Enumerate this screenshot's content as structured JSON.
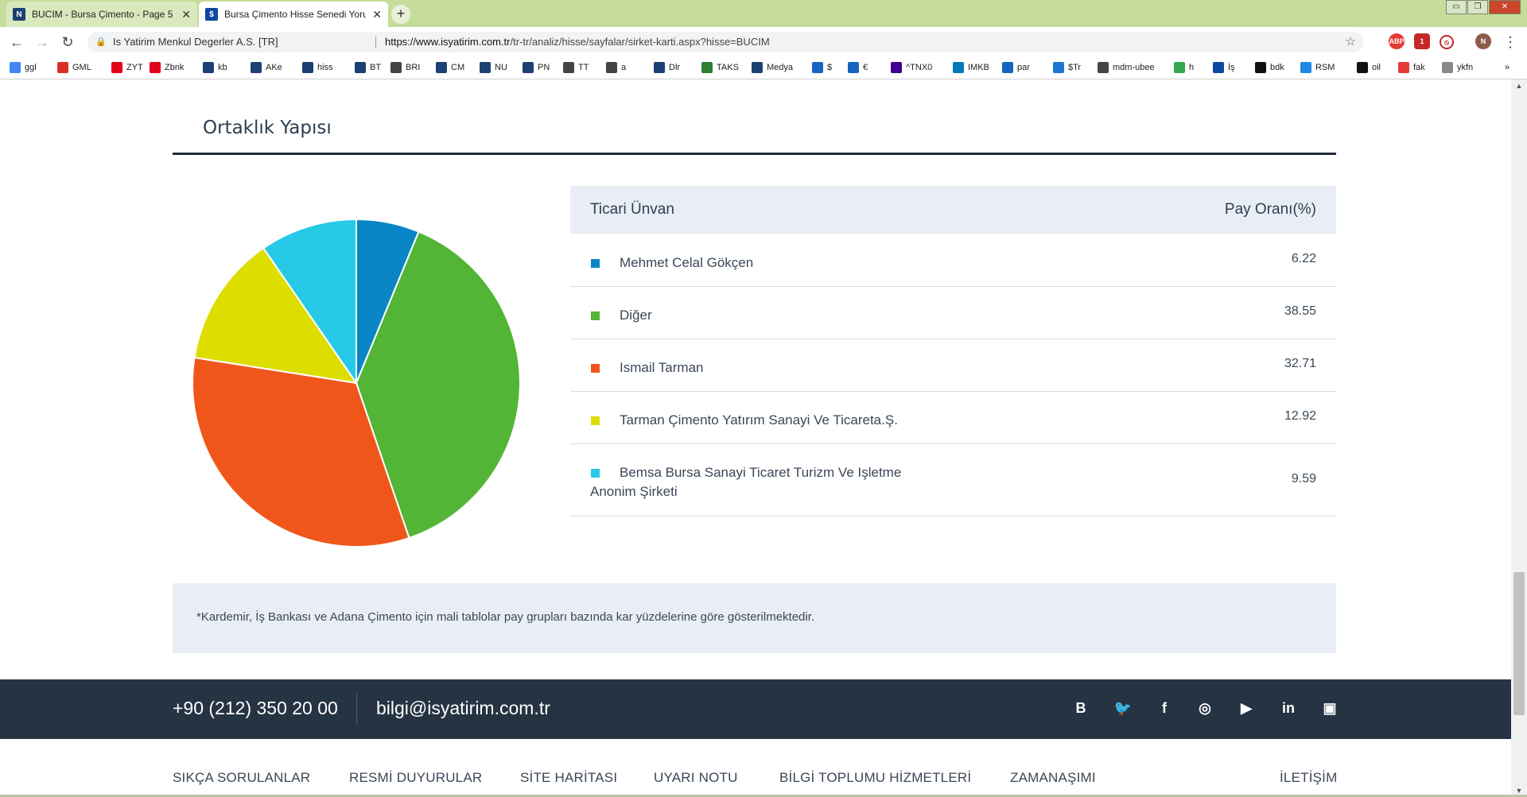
{
  "browser": {
    "tabs": [
      {
        "title": "BUCIM - Bursa Çimento - Page 5",
        "favicon": "isyatirim-icon",
        "active": false
      },
      {
        "title": "Bursa Çimento Hisse Senedi Yorumları",
        "favicon": "dollar-icon",
        "active": true
      }
    ],
    "new_tab": "+",
    "window_controls": [
      "▭",
      "❐",
      "✕"
    ],
    "site_identity": "Is Yatirim Menkul Degerler A.S. [TR]",
    "url_host": "https://www.isyatirim.com.tr",
    "url_path": "/tr-tr/analiz/hisse/sayfalar/sirket-karti.aspx?hisse=BUCIM",
    "profile_initial": "N",
    "bookmarks": [
      {
        "label": "ggl",
        "icon": "google-icon",
        "color": "#4285f4"
      },
      {
        "label": "GML",
        "icon": "gmail-icon",
        "color": "#d93025"
      },
      {
        "label": "ZYT",
        "icon": "ziraat-icon",
        "color": "#e2001a"
      },
      {
        "label": "Zbnk",
        "icon": "ziraat-icon",
        "color": "#e2001a"
      },
      {
        "label": "kb",
        "icon": "isyatirim-icon",
        "color": "#1c3f74"
      },
      {
        "label": "AKe",
        "icon": "isyatirim-icon",
        "color": "#1c3f74"
      },
      {
        "label": "hiss",
        "icon": "isyatirim-icon",
        "color": "#1c3f74"
      },
      {
        "label": "BT",
        "icon": "isyatirim-icon",
        "color": "#1c3f74"
      },
      {
        "label": "BRI",
        "icon": "globe-icon",
        "color": "#444444"
      },
      {
        "label": "CM",
        "icon": "isyatirim-icon",
        "color": "#1c3f74"
      },
      {
        "label": "NU",
        "icon": "isyatirim-icon",
        "color": "#1c3f74"
      },
      {
        "label": "PN",
        "icon": "isyatirim-icon",
        "color": "#1c3f74"
      },
      {
        "label": "TT",
        "icon": "globe-icon",
        "color": "#444444"
      },
      {
        "label": "a",
        "icon": "globe-icon",
        "color": "#444444"
      },
      {
        "label": "Dlr",
        "icon": "isyatirim-icon",
        "color": "#1c3f74"
      },
      {
        "label": "TAKS",
        "icon": "leaf-icon",
        "color": "#2e7d32"
      },
      {
        "label": "Medya",
        "icon": "isyatirim-icon",
        "color": "#1c3f74"
      },
      {
        "label": "$",
        "icon": "arrow-icon",
        "color": "#1565c0"
      },
      {
        "label": "€",
        "icon": "arrow-icon",
        "color": "#1565c0"
      },
      {
        "label": "^TNX0",
        "icon": "yahoo-icon",
        "color": "#410093"
      },
      {
        "label": "IMKB",
        "icon": "bloomberg-icon",
        "color": "#0277bd"
      },
      {
        "label": "par",
        "icon": "arrow-icon",
        "color": "#1565c0"
      },
      {
        "label": "$Tr",
        "icon": "cloud-icon",
        "color": "#1976d2"
      },
      {
        "label": "mdm-ubee",
        "icon": "globe-icon",
        "color": "#444444"
      },
      {
        "label": "h",
        "icon": "maps-icon",
        "color": "#34a853"
      },
      {
        "label": "İş",
        "icon": "dollar-icon",
        "color": "#0d47a1"
      },
      {
        "label": "bdk",
        "icon": "db-icon",
        "color": "#111111"
      },
      {
        "label": "RSM",
        "icon": "rsm-icon",
        "color": "#1e88e5"
      },
      {
        "label": "oil",
        "icon": "lc-icon",
        "color": "#111111"
      },
      {
        "label": "fak",
        "icon": "plus-icon",
        "color": "#e53935"
      },
      {
        "label": "ykfn",
        "icon": "link-icon",
        "color": "#888888"
      }
    ],
    "bookmarks_more": "»"
  },
  "page": {
    "section_title": "Ortaklık Yapısı",
    "table": {
      "col_name": "Ticari Ünvan",
      "col_share": "Pay Oranı(%)",
      "rows": [
        {
          "name": "Mehmet Celal Gökçen",
          "share": "6.22",
          "color": "#0a86c6"
        },
        {
          "name": "Diğer",
          "share": "38.55",
          "color": "#52b535"
        },
        {
          "name": "Ismail Tarman",
          "share": "32.71",
          "color": "#f0561c"
        },
        {
          "name": "Tarman Çimento Yatırım Sanayi Ve Ticareta.Ş.",
          "share": "12.92",
          "color": "#dddd00"
        },
        {
          "name_line1": "Bemsa Bursa Sanayi Ticaret Turizm Ve Işletme",
          "name_line2": "Anonim Şirketi",
          "share": "9.59",
          "color": "#26c9e6"
        }
      ]
    },
    "chart_data": {
      "type": "pie",
      "categories": [
        "Mehmet Celal Gökçen",
        "Diğer",
        "Ismail Tarman",
        "Tarman Çimento Yatırım Sanayi Ve Ticareta.Ş.",
        "Bemsa Bursa Sanayi Ticaret Turizm Ve Işletme Anonim Şirketi"
      ],
      "values": [
        6.22,
        38.55,
        32.71,
        12.92,
        9.59
      ],
      "colors": [
        "#0a86c6",
        "#52b535",
        "#f0561c",
        "#dddd00",
        "#26c9e6"
      ],
      "title": "",
      "legend": "none"
    },
    "note": "*Kardemir, İş Bankası ve Adana Çimento için mali tablolar pay grupları bazında kar yüzdelerine göre gösterilmektedir."
  },
  "footer": {
    "phone": "+90 (212) 350 20 00",
    "email": "bilgi@isyatirim.com.tr",
    "social": [
      {
        "icon": "blogger-icon",
        "glyph": "B"
      },
      {
        "icon": "twitter-icon",
        "glyph": "🐦"
      },
      {
        "icon": "facebook-icon",
        "glyph": "f"
      },
      {
        "icon": "instagram-icon",
        "glyph": "◎"
      },
      {
        "icon": "youtube-icon",
        "glyph": "▶"
      },
      {
        "icon": "linkedin-icon",
        "glyph": "in"
      },
      {
        "icon": "slideshare-icon",
        "glyph": "▣"
      }
    ],
    "links": [
      "SIKÇA SORULANLAR",
      "RESMİ DUYURULAR",
      "SİTE HARİTASI",
      "UYARI NOTU",
      "BİLGİ TOPLUMU HİZMETLERİ",
      "ZAMANAŞIMI",
      "İLETİŞİM"
    ]
  }
}
